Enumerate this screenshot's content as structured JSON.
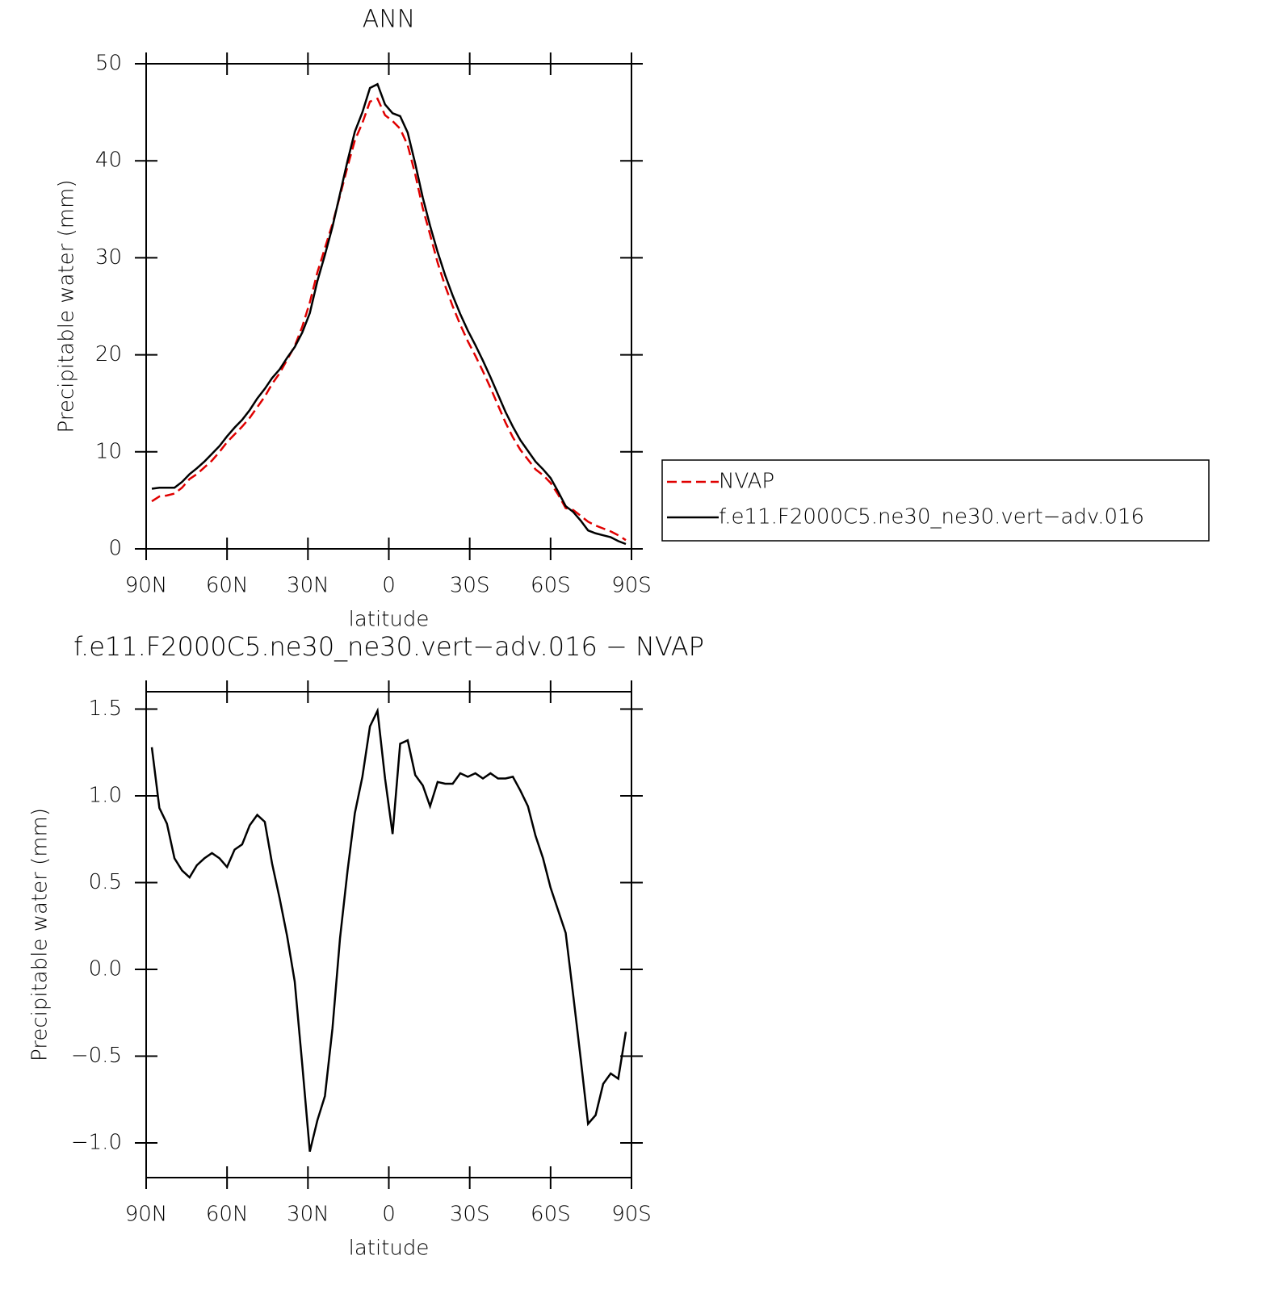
{
  "chart_data": [
    {
      "type": "line",
      "title": "ANN",
      "xlabel": "latitude",
      "ylabel": "Precipitable water (mm)",
      "x": [
        87.9,
        85.1,
        82.3,
        79.5,
        76.7,
        73.9,
        71.2,
        68.4,
        65.6,
        62.8,
        60.0,
        57.2,
        54.4,
        51.6,
        48.8,
        46.0,
        43.3,
        40.5,
        37.7,
        34.9,
        32.1,
        29.3,
        26.5,
        23.7,
        20.9,
        18.1,
        15.3,
        12.6,
        9.8,
        7.0,
        4.2,
        1.4,
        -1.4,
        -4.2,
        -7.0,
        -9.8,
        -12.6,
        -15.3,
        -18.1,
        -20.9,
        -23.7,
        -26.5,
        -29.3,
        -32.1,
        -34.9,
        -37.7,
        -40.5,
        -43.3,
        -46.0,
        -48.8,
        -51.6,
        -54.4,
        -57.2,
        -60.0,
        -62.8,
        -65.6,
        -68.4,
        -71.2,
        -73.9,
        -76.7,
        -79.5,
        -82.3,
        -85.1,
        -87.9
      ],
      "series": [
        {
          "name": "NVAP",
          "color": "#e00000",
          "dashed": true,
          "values": [
            4.9,
            5.4,
            5.5,
            5.7,
            6.3,
            7.2,
            7.7,
            8.4,
            9.1,
            10.0,
            11.0,
            11.8,
            12.6,
            13.5,
            14.6,
            15.7,
            17.0,
            18.1,
            19.5,
            20.9,
            22.9,
            25.4,
            28.5,
            31.0,
            33.5,
            36.4,
            39.4,
            42.1,
            43.9,
            46.1,
            46.4,
            44.7,
            44.1,
            43.3,
            41.6,
            38.6,
            35.1,
            32.4,
            29.5,
            27.1,
            25.0,
            23.1,
            21.4,
            19.9,
            18.3,
            16.6,
            14.8,
            13.0,
            11.5,
            10.2,
            9.2,
            8.2,
            7.6,
            6.8,
            5.6,
            4.2,
            4.0,
            3.4,
            2.8,
            2.4,
            2.1,
            1.8,
            1.4,
            0.9
          ]
        },
        {
          "name": "f.e11.F2000C5.ne30_ne30.vert−adv.016",
          "color": "#000000",
          "dashed": false,
          "values": [
            6.2,
            6.3,
            6.3,
            6.3,
            6.9,
            7.7,
            8.3,
            9.0,
            9.8,
            10.6,
            11.6,
            12.5,
            13.3,
            14.3,
            15.5,
            16.5,
            17.6,
            18.5,
            19.7,
            20.8,
            22.3,
            24.3,
            27.6,
            30.3,
            33.2,
            36.6,
            40.0,
            43.0,
            45.0,
            47.5,
            47.9,
            45.8,
            44.9,
            44.6,
            42.9,
            39.7,
            36.2,
            33.3,
            30.6,
            28.2,
            26.1,
            24.2,
            22.5,
            21.0,
            19.4,
            17.7,
            15.9,
            14.1,
            12.6,
            11.2,
            10.1,
            9.0,
            8.2,
            7.3,
            5.9,
            4.4,
            3.8,
            2.9,
            1.9,
            1.6,
            1.4,
            1.2,
            0.8,
            0.5
          ]
        }
      ],
      "xlim": [
        90,
        -90
      ],
      "xticks": [
        {
          "value": 90,
          "label": "90N"
        },
        {
          "value": 60,
          "label": "60N"
        },
        {
          "value": 30,
          "label": "30N"
        },
        0,
        {
          "value": -30,
          "label": "30S"
        },
        {
          "value": -60,
          "label": "60S"
        },
        {
          "value": -90,
          "label": "90S"
        }
      ],
      "ylim": [
        0,
        50
      ],
      "yticks": [
        0,
        10,
        20,
        30,
        40,
        50
      ],
      "legend": "outside-right"
    },
    {
      "type": "line",
      "title": "f.e11.F2000C5.ne30_ne30.vert−adv.016  −  NVAP",
      "xlabel": "latitude",
      "ylabel": "Precipitable water (mm)",
      "x": [
        87.9,
        85.1,
        82.3,
        79.5,
        76.7,
        73.9,
        71.2,
        68.4,
        65.6,
        62.8,
        60.0,
        57.2,
        54.4,
        51.6,
        48.8,
        46.0,
        43.3,
        40.5,
        37.7,
        34.9,
        32.1,
        29.3,
        26.5,
        23.7,
        20.9,
        18.1,
        15.3,
        12.6,
        9.8,
        7.0,
        4.2,
        1.4,
        -1.4,
        -4.2,
        -7.0,
        -9.8,
        -12.6,
        -15.3,
        -18.1,
        -20.9,
        -23.7,
        -26.5,
        -29.3,
        -32.1,
        -34.9,
        -37.7,
        -40.5,
        -43.3,
        -46.0,
        -48.8,
        -51.6,
        -54.4,
        -57.2,
        -60.0,
        -62.8,
        -65.6,
        -68.4,
        -71.2,
        -73.9,
        -76.7,
        -79.5,
        -82.3,
        -85.1,
        -87.9
      ],
      "series": [
        {
          "color": "#000000",
          "dashed": false,
          "values": [
            1.28,
            0.93,
            0.84,
            0.64,
            0.57,
            0.53,
            0.6,
            0.64,
            0.67,
            0.64,
            0.59,
            0.69,
            0.72,
            0.83,
            0.89,
            0.85,
            0.61,
            0.41,
            0.19,
            -0.07,
            -0.55,
            -1.05,
            -0.87,
            -0.73,
            -0.34,
            0.18,
            0.57,
            0.9,
            1.11,
            1.4,
            1.49,
            1.1,
            0.78,
            1.3,
            1.32,
            1.12,
            1.06,
            0.94,
            1.08,
            1.07,
            1.07,
            1.13,
            1.11,
            1.13,
            1.1,
            1.13,
            1.1,
            1.1,
            1.11,
            1.03,
            0.94,
            0.77,
            0.64,
            0.47,
            0.34,
            0.21,
            -0.15,
            -0.52,
            -0.89,
            -0.84,
            -0.66,
            -0.6,
            -0.63,
            -0.36
          ]
        }
      ],
      "xlim": [
        90,
        -90
      ],
      "xticks": [
        {
          "value": 90,
          "label": "90N"
        },
        {
          "value": 60,
          "label": "60N"
        },
        {
          "value": 30,
          "label": "30N"
        },
        0,
        {
          "value": -30,
          "label": "30S"
        },
        {
          "value": -60,
          "label": "60S"
        },
        {
          "value": -90,
          "label": "90S"
        }
      ],
      "ylim": [
        -1.2,
        1.6
      ],
      "yticks": [
        {
          "value": -1.0,
          "label": "−1.0"
        },
        {
          "value": -0.5,
          "label": "−0.5"
        },
        {
          "value": 0,
          "label": "0.0"
        },
        0.5,
        {
          "value": 1.0,
          "label": "1.0"
        },
        1.5
      ]
    }
  ]
}
